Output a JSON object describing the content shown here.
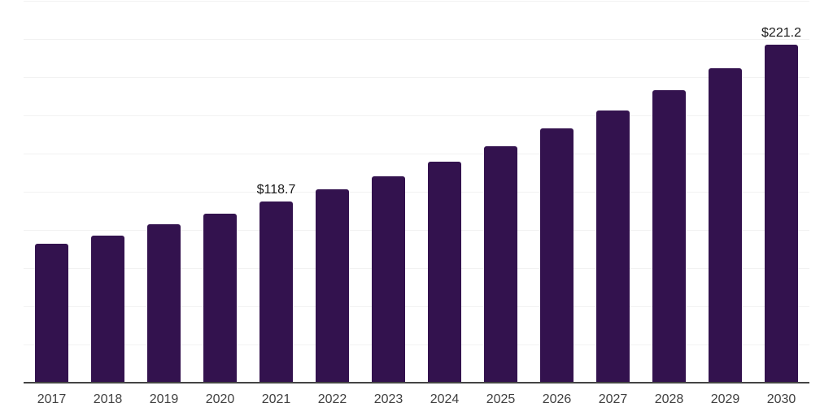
{
  "chart_data": {
    "type": "bar",
    "title": "",
    "xlabel": "",
    "ylabel": "",
    "categories": [
      "2017",
      "2018",
      "2019",
      "2020",
      "2021",
      "2022",
      "2023",
      "2024",
      "2025",
      "2026",
      "2027",
      "2028",
      "2029",
      "2030"
    ],
    "values": [
      91.2,
      96.5,
      103.9,
      110.8,
      118.7,
      126.7,
      135.2,
      144.7,
      154.8,
      166.5,
      178.1,
      191.4,
      205.7,
      221.2
    ],
    "labeled_points": [
      {
        "category": "2021",
        "label": "$118.7"
      },
      {
        "category": "2030",
        "label": "$221.2"
      }
    ],
    "ylim": [
      0,
      250
    ],
    "grid_step": 25,
    "grid": true,
    "legend": false,
    "y_axis_labels_visible": false,
    "colors": {
      "bar": "#33124E",
      "axis_line": "#444444",
      "gridline": "#f2f2f2",
      "tick_label": "#404040",
      "value_label": "#1a1a1a",
      "background": "#ffffff"
    }
  }
}
